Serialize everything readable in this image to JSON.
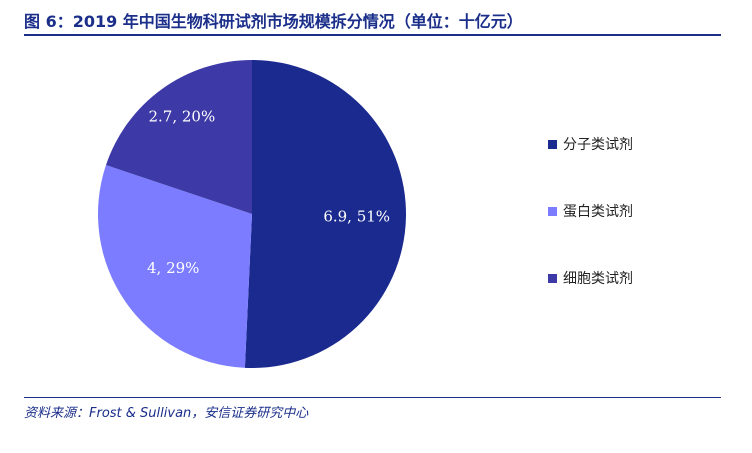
{
  "header": {
    "title": "图 6：2019 年中国生物科研试剂市场规模拆分情况（单位：十亿元）"
  },
  "footer": {
    "source": "资料来源：Frost & Sullivan，安信证券研究中心"
  },
  "colors": {
    "title": "#1a2e8a",
    "slice_molecular": "#1b2a8f",
    "slice_protein": "#7b7cff",
    "slice_cell": "#3d3aa8"
  },
  "chart_data": {
    "type": "pie",
    "title": "",
    "start_angle_deg": 0,
    "direction": "clockwise",
    "slices": [
      {
        "name": "分子类试剂",
        "value": 6.9,
        "percent": 51,
        "label": "6.9, 51%",
        "color": "#1b2a8f"
      },
      {
        "name": "蛋白类试剂",
        "value": 4,
        "percent": 29,
        "label": "4, 29%",
        "color": "#7b7cff"
      },
      {
        "name": "细胞类试剂",
        "value": 2.7,
        "percent": 20,
        "label": "2.7, 20%",
        "color": "#3d3aa8"
      }
    ],
    "legend_position": "right"
  }
}
